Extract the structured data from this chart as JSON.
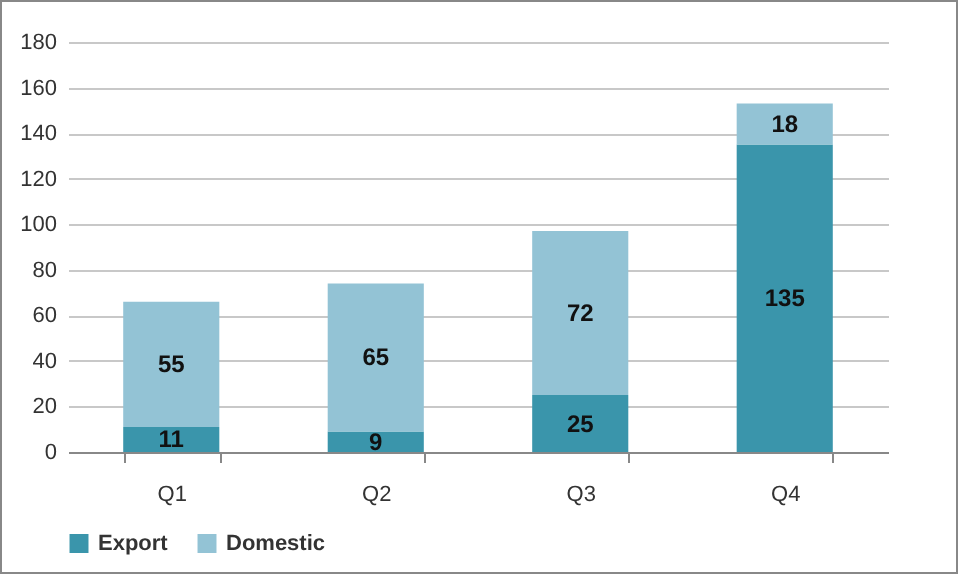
{
  "chart_data": {
    "type": "bar",
    "stacked": true,
    "categories": [
      "Q1",
      "Q2",
      "Q3",
      "Q4"
    ],
    "series": [
      {
        "name": "Export",
        "color": "#3a95ab",
        "values": [
          11,
          9,
          25,
          135
        ]
      },
      {
        "name": "Domestic",
        "color": "#93c3d5",
        "values": [
          55,
          65,
          72,
          18
        ]
      }
    ],
    "ylim": [
      0,
      180
    ],
    "yticks": [
      0,
      20,
      40,
      60,
      80,
      100,
      120,
      140,
      160,
      180
    ],
    "grid": "y",
    "legend": "bottom",
    "data_labels": true
  }
}
